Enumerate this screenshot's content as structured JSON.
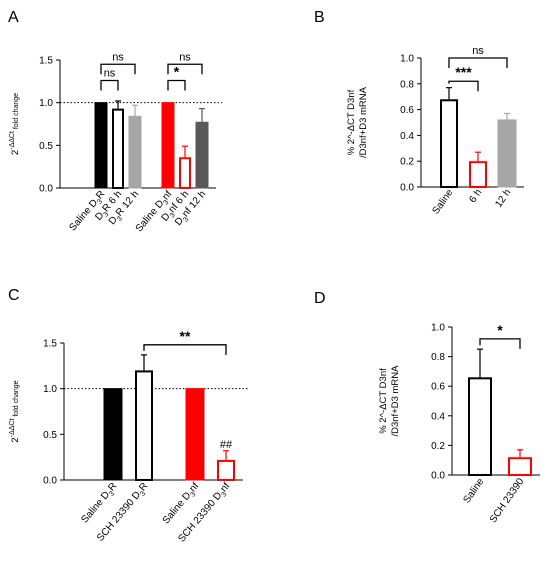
{
  "chart_data": [
    {
      "panel": "A",
      "type": "bar",
      "ylabel_base": "2",
      "ylabel_exp": "-ΔΔCt",
      "ylabel_rest": " fold change",
      "ylim": [
        0,
        1.5
      ],
      "yticks": [
        "0.0",
        "0.5",
        "1.0",
        "1.5"
      ],
      "reference_line": 1.0,
      "categories": [
        {
          "parts": [
            [
              "Saline D",
              "n"
            ],
            [
              "3",
              "s"
            ],
            [
              "R",
              "n"
            ]
          ]
        },
        {
          "parts": [
            [
              "D",
              "n"
            ],
            [
              "3",
              "s"
            ],
            [
              "R 6 h",
              "n"
            ]
          ]
        },
        {
          "parts": [
            [
              "D",
              "n"
            ],
            [
              "3",
              "s"
            ],
            [
              "R 12 h",
              "n"
            ]
          ]
        },
        {
          "parts": [
            [
              "Saline D",
              "n"
            ],
            [
              "3",
              "s"
            ],
            [
              "nf",
              "n"
            ]
          ]
        },
        {
          "parts": [
            [
              "D",
              "n"
            ],
            [
              "3",
              "s"
            ],
            [
              "nf 6 h",
              "n"
            ]
          ]
        },
        {
          "parts": [
            [
              "D",
              "n"
            ],
            [
              "3",
              "s"
            ],
            [
              "nf 12 h",
              "n"
            ]
          ]
        }
      ],
      "values": [
        1.0,
        0.93,
        0.84,
        1.0,
        0.36,
        0.77
      ],
      "errors": [
        0,
        0.09,
        0.13,
        0,
        0.13,
        0.16
      ],
      "styles": [
        "black",
        "white-black",
        "gray",
        "red",
        "white-red",
        "darkgray"
      ],
      "comparisons": [
        {
          "from": 0,
          "to": 1,
          "label": "ns",
          "level": 1.26
        },
        {
          "from": 0,
          "to": 2,
          "label": "ns",
          "level": 1.45
        },
        {
          "from": 3,
          "to": 4,
          "label": "*",
          "level": 1.26
        },
        {
          "from": 3,
          "to": 5,
          "label": "ns",
          "level": 1.45
        }
      ]
    },
    {
      "panel": "B",
      "type": "bar",
      "ylabel_line1": "% 2^-ΔCT D3nf",
      "ylabel_line2": "/D3nf+D3 mRNA",
      "ylim": [
        0,
        1.0
      ],
      "yticks": [
        "0.0",
        "0.2",
        "0.4",
        "0.6",
        "0.8",
        "1.0"
      ],
      "categories": [
        {
          "parts": [
            [
              "Saline",
              "n"
            ]
          ]
        },
        {
          "parts": [
            [
              "6 h",
              "n"
            ]
          ]
        },
        {
          "parts": [
            [
              "12 h",
              "n"
            ]
          ]
        }
      ],
      "values": [
        0.68,
        0.2,
        0.52
      ],
      "errors": [
        0.09,
        0.07,
        0.05
      ],
      "styles": [
        "white-black",
        "white-red",
        "gray"
      ],
      "comparisons": [
        {
          "from": 0,
          "to": 1,
          "label": "***",
          "level": 0.82
        },
        {
          "from": 0,
          "to": 2,
          "label": "ns",
          "level": 1.0
        }
      ]
    },
    {
      "panel": "C",
      "type": "bar",
      "ylabel_base": "2",
      "ylabel_exp": "-ΔΔCt",
      "ylabel_rest": " fold change",
      "ylim": [
        0,
        1.5
      ],
      "yticks": [
        "0.0",
        "0.5",
        "1.0",
        "1.5"
      ],
      "reference_line": 1.0,
      "categories": [
        {
          "parts": [
            [
              "Saline D",
              "n"
            ],
            [
              "3",
              "s"
            ],
            [
              "R",
              "n"
            ]
          ]
        },
        {
          "parts": [
            [
              "SCH 23390 D",
              "n"
            ],
            [
              "3",
              "s"
            ],
            [
              "R",
              "n"
            ]
          ]
        },
        {
          "parts": [
            [
              "Saline D",
              "n"
            ],
            [
              "3",
              "s"
            ],
            [
              "nf",
              "n"
            ]
          ]
        },
        {
          "parts": [
            [
              "SCH 23390 D",
              "n"
            ],
            [
              "3",
              "s"
            ],
            [
              "nf",
              "n"
            ]
          ]
        }
      ],
      "values": [
        1.0,
        1.2,
        1.0,
        0.22
      ],
      "errors": [
        0,
        0.17,
        0,
        0.1
      ],
      "styles": [
        "black",
        "white-black",
        "red",
        "white-red"
      ],
      "bar_annotations": [
        {
          "index": 3,
          "label": "##"
        }
      ],
      "comparisons": [
        {
          "from": 1,
          "to": 3,
          "label": "**",
          "level": 1.48
        }
      ]
    },
    {
      "panel": "D",
      "type": "bar",
      "ylabel_line1": "% 2^-ΔCT D3nf",
      "ylabel_line2": "/D3nf+D3 mRNA",
      "ylim": [
        0,
        1.0
      ],
      "yticks": [
        "0.0",
        "0.2",
        "0.4",
        "0.6",
        "0.8",
        "1.0"
      ],
      "categories": [
        {
          "parts": [
            [
              "Saline",
              "n"
            ]
          ]
        },
        {
          "parts": [
            [
              "SCH 23390",
              "n"
            ]
          ]
        }
      ],
      "values": [
        0.66,
        0.12
      ],
      "errors": [
        0.19,
        0.05
      ],
      "styles": [
        "white-black",
        "white-red"
      ],
      "comparisons": [
        {
          "from": 0,
          "to": 1,
          "label": "*",
          "level": 0.92
        }
      ]
    }
  ],
  "colors": {
    "black": "#000000",
    "red": "#ff0000",
    "gray": "#a6a6a6",
    "darkgray": "#595959"
  }
}
